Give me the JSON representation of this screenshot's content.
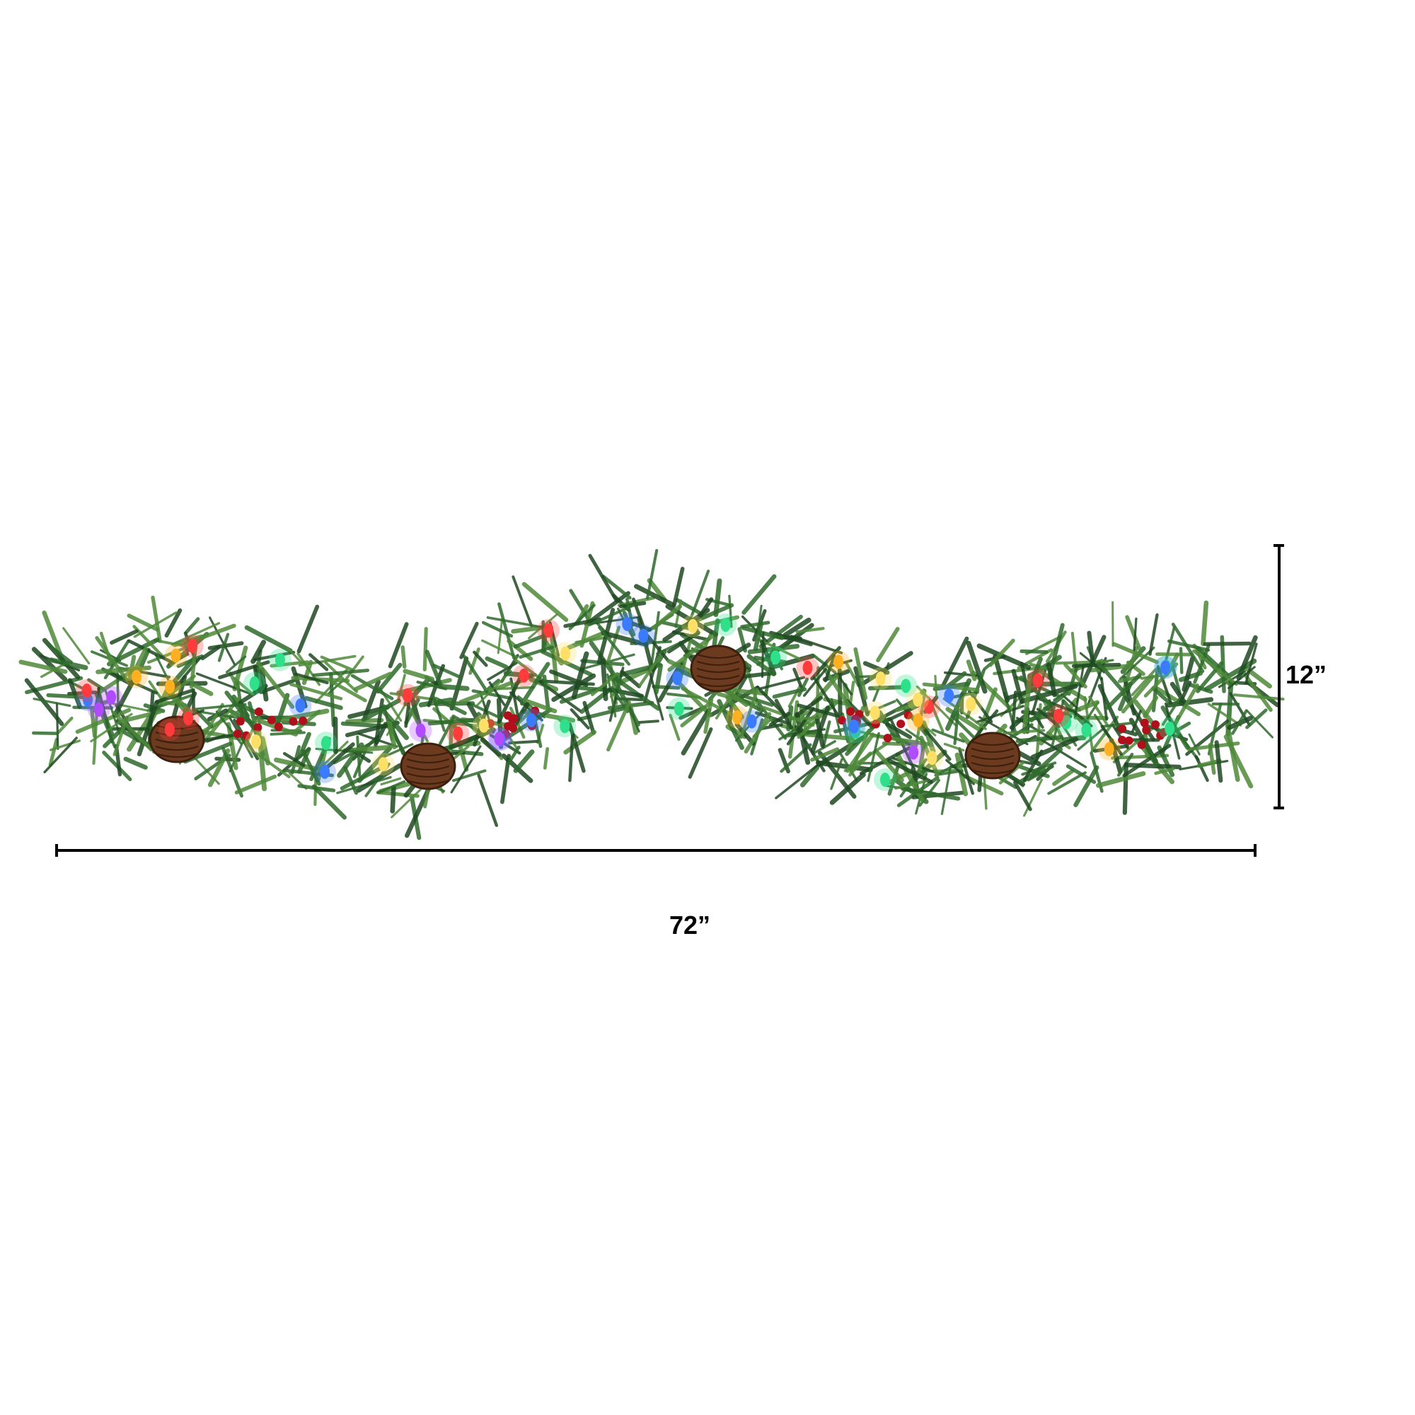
{
  "product": {
    "colors": {
      "needle_dark": "#1f4a22",
      "needle_mid": "#2f6b2c",
      "needle_light": "#4f8a3a",
      "pinecone": "#6b3a1f",
      "berry": "#b0101c",
      "lights": [
        "#ff3b3b",
        "#ffb020",
        "#3b7bff",
        "#b04bff",
        "#2fe08a",
        "#ffe066"
      ]
    }
  },
  "dimensions": {
    "width_label": "72”",
    "height_label": "12”",
    "line_color": "#000000"
  }
}
